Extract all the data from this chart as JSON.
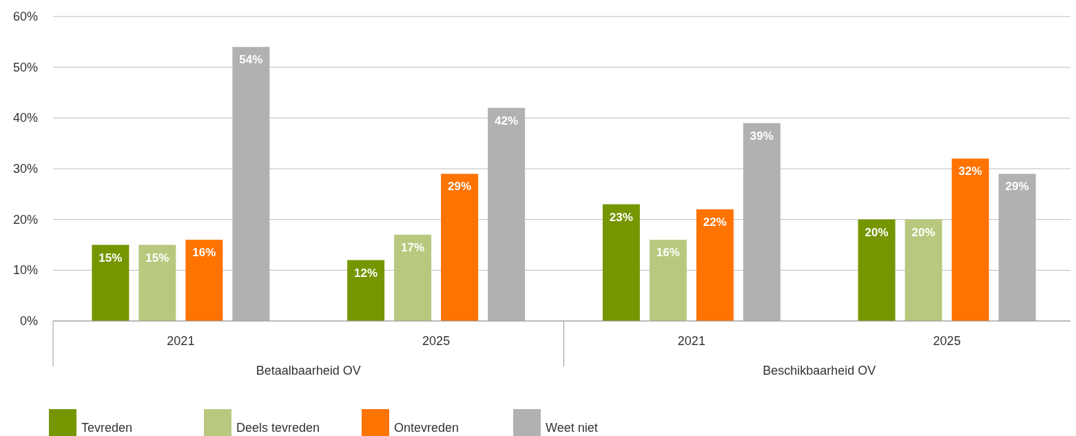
{
  "chart_data": {
    "type": "bar",
    "categories": [
      "2021",
      "2025",
      "2021",
      "2025"
    ],
    "series": [
      {
        "name": "Tevreden",
        "color": "#759600",
        "values": [
          15,
          12,
          23,
          20
        ],
        "value_labels": [
          "15%",
          "12%",
          "23%",
          "20%"
        ]
      },
      {
        "name": "Deels tevreden",
        "color": "#b8c97f",
        "values": [
          15,
          17,
          16,
          20
        ],
        "value_labels": [
          "15%",
          "17%",
          "16%",
          "20%"
        ]
      },
      {
        "name": "Ontevreden",
        "color": "#ff7300",
        "values": [
          16,
          29,
          22,
          32
        ],
        "value_labels": [
          "16%",
          "29%",
          "22%",
          "32%"
        ]
      },
      {
        "name": "Weet niet",
        "color": "#b1b1b1",
        "values": [
          54,
          42,
          39,
          29
        ],
        "value_labels": [
          "54%",
          "42%",
          "39%",
          "29%"
        ]
      }
    ],
    "ylim": [
      0,
      60
    ],
    "yticks": [
      {
        "value": 0,
        "label": "0%"
      },
      {
        "value": 10,
        "label": "10%"
      },
      {
        "value": 20,
        "label": "20%"
      },
      {
        "value": 30,
        "label": "30%"
      },
      {
        "value": 40,
        "label": "40%"
      },
      {
        "value": 50,
        "label": "50%"
      },
      {
        "value": 60,
        "label": "60%"
      }
    ],
    "grid": "y",
    "legend": "bottom",
    "annotations": [
      "Betaalbaarheid OV",
      "Beschikbaarheid OV"
    ]
  }
}
